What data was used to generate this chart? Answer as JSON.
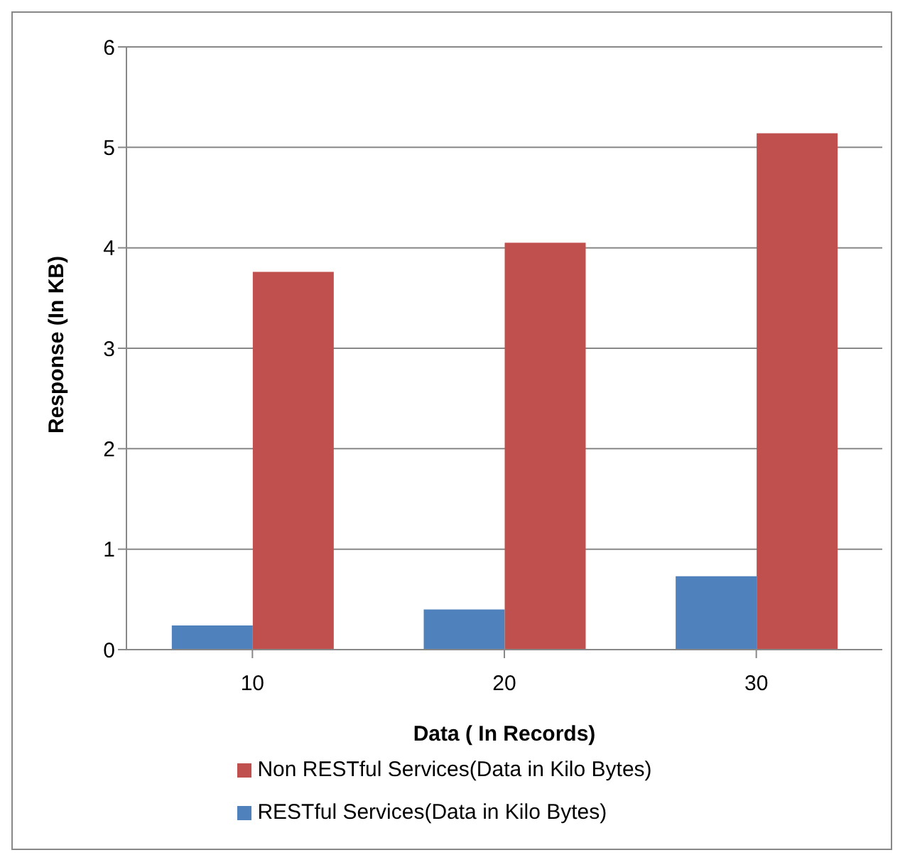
{
  "chart_data": {
    "type": "bar",
    "xlabel": "Data ( In Records)",
    "ylabel": "Response (In KB)",
    "categories": [
      "10",
      "20",
      "30"
    ],
    "series": [
      {
        "name": "RESTful Services(Data in Kilo Bytes)",
        "color": "#4f81bd",
        "values": [
          0.24,
          0.4,
          0.73
        ]
      },
      {
        "name": "Non RESTful Services(Data in Kilo Bytes)",
        "color": "#c0504d",
        "values": [
          3.76,
          4.05,
          5.14
        ]
      }
    ],
    "ylim": [
      0,
      6
    ],
    "yticks": [
      0,
      1,
      2,
      3,
      4,
      5,
      6
    ],
    "grid": "y",
    "legend": "bottom"
  }
}
